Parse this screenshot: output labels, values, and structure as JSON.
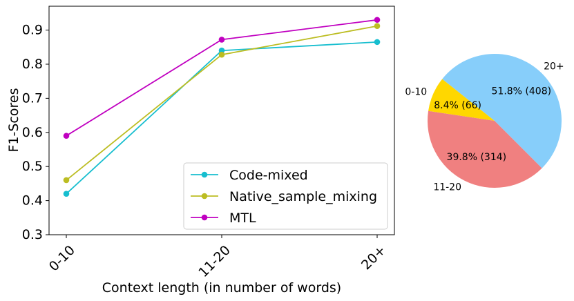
{
  "chart_data": [
    {
      "type": "line",
      "categories": [
        "0-10",
        "11-20",
        "20+"
      ],
      "series": [
        {
          "name": "Code-mixed",
          "color": "#17becf",
          "values": [
            0.42,
            0.84,
            0.865
          ]
        },
        {
          "name": "Native_sample_mixing",
          "color": "#bcbd22",
          "values": [
            0.46,
            0.828,
            0.912
          ]
        },
        {
          "name": "MTL",
          "color": "#c000c0",
          "values": [
            0.59,
            0.872,
            0.93
          ]
        }
      ],
      "xlabel": "Context length (in number of words)",
      "ylabel": "F1-Scores",
      "ylim": [
        0.3,
        0.97
      ],
      "yticks": [
        0.3,
        0.4,
        0.5,
        0.6,
        0.7,
        0.8,
        0.9
      ],
      "ytick_labels": [
        "0.3",
        "0.4",
        "0.5",
        "0.6",
        "0.7",
        "0.8",
        "0.9"
      ],
      "legend_position": "lower-right",
      "grid": false
    },
    {
      "type": "pie",
      "slices": [
        {
          "category": "20+",
          "value": 408,
          "percent_label": "51.8% (408)",
          "color": "#87cefa"
        },
        {
          "category": "0-10",
          "value": 66,
          "percent_label": "8.4% (66)",
          "color": "#ffd700"
        },
        {
          "category": "11-20",
          "value": 314,
          "percent_label": "39.8% (314)",
          "color": "#f08080"
        }
      ]
    }
  ]
}
